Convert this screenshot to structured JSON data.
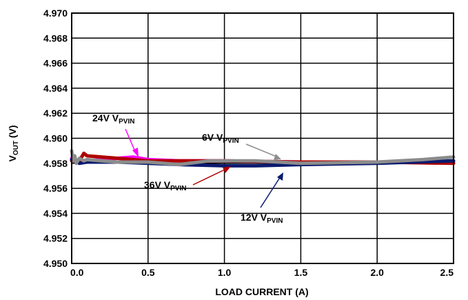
{
  "chart_data": {
    "type": "line",
    "xlabel": "LOAD CURRENT (A)",
    "ylabel": {
      "main": "V",
      "sub": "OUT",
      "suffix": " (V)"
    },
    "xlim": [
      0,
      2.5
    ],
    "ylim": [
      4.95,
      4.97
    ],
    "x_ticks": [
      "0.0",
      "0.5",
      "1.0",
      "1.5",
      "2.0",
      "2.5"
    ],
    "y_ticks": [
      "4.950",
      "4.952",
      "4.954",
      "4.956",
      "4.958",
      "4.960",
      "4.962",
      "4.964",
      "4.966",
      "4.968",
      "4.970"
    ],
    "grid": true,
    "series": [
      {
        "name": {
          "main": "24V V",
          "sub": "PVIN"
        },
        "color": "#ff00ff",
        "x": [
          0.0,
          0.02,
          0.05,
          0.1,
          0.2,
          0.3,
          0.4,
          0.5,
          0.7,
          1.0,
          1.5,
          2.0,
          2.5
        ],
        "y": [
          4.9584,
          4.9582,
          4.9581,
          4.9582,
          4.9583,
          4.9584,
          4.9585,
          4.9583,
          4.9582,
          4.9582,
          4.9581,
          4.9581,
          4.9581
        ]
      },
      {
        "name": {
          "main": "36V V",
          "sub": "PVIN"
        },
        "color": "#b00000",
        "x": [
          0.0,
          0.05,
          0.08,
          0.1,
          0.2,
          0.3,
          0.5,
          0.7,
          1.0,
          1.5,
          2.0,
          2.5
        ],
        "y": [
          4.9582,
          4.9582,
          4.9588,
          4.9586,
          4.9585,
          4.9584,
          4.9582,
          4.9582,
          4.9582,
          4.9581,
          4.9581,
          4.958
        ]
      },
      {
        "name": {
          "main": "12V V",
          "sub": "PVIN"
        },
        "color": "#0a1a6e",
        "x": [
          0.0,
          0.05,
          0.1,
          0.3,
          0.5,
          0.7,
          1.0,
          1.2,
          1.5,
          2.0,
          2.5
        ],
        "y": [
          4.9583,
          4.958,
          4.9581,
          4.9581,
          4.958,
          4.9579,
          4.9578,
          4.9578,
          4.9579,
          4.958,
          4.9582
        ]
      },
      {
        "name": {
          "main": "6V V",
          "sub": "PVIN"
        },
        "color": "#8c8c8c",
        "x": [
          0.0,
          0.01,
          0.02,
          0.03,
          0.05,
          0.08,
          0.1,
          0.2,
          0.3,
          0.5,
          0.7,
          0.9,
          1.2,
          1.5,
          2.0,
          2.3,
          2.5
        ],
        "y": [
          4.959,
          4.9582,
          4.9586,
          4.958,
          4.9584,
          4.9582,
          4.9583,
          4.9582,
          4.9581,
          4.9581,
          4.9579,
          4.9582,
          4.9582,
          4.958,
          4.9581,
          4.9583,
          4.9585
        ]
      }
    ]
  }
}
